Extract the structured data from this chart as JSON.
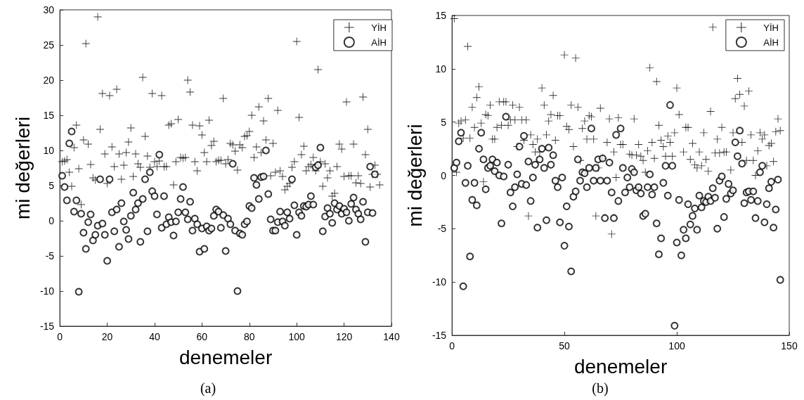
{
  "chart_data": [
    {
      "type": "scatter",
      "xlabel": "denemeler",
      "ylabel": "mi değerleri",
      "annotations": [
        "(a)"
      ],
      "xlim": [
        0,
        140
      ],
      "xticks": [
        0,
        20,
        40,
        60,
        80,
        100,
        120,
        140
      ],
      "ylim": [
        -15,
        30
      ],
      "yticks": [
        -15,
        -10,
        -5,
        0,
        5,
        10,
        15,
        20,
        25,
        30
      ],
      "grid": false,
      "legend": "top right",
      "series": [
        {
          "name": "YİH",
          "color": "#000000",
          "marker": "cross",
          "x": [
            1,
            2,
            3,
            4,
            5,
            6,
            7,
            8,
            9,
            10,
            11,
            12,
            13,
            14,
            15,
            16,
            17,
            18,
            19,
            20,
            21,
            22,
            23,
            24,
            25,
            26,
            27,
            28,
            29,
            30,
            31,
            32,
            33,
            34,
            35,
            36,
            37,
            38,
            39,
            40,
            41,
            42,
            43,
            44,
            45,
            46,
            47,
            48,
            49,
            50,
            51,
            52,
            53,
            54,
            55,
            56,
            57,
            58,
            59,
            60,
            61,
            62,
            63,
            64,
            65,
            66,
            67,
            68,
            69,
            70,
            71,
            72,
            73,
            74,
            75,
            76,
            77,
            78,
            79,
            80,
            81,
            82,
            83,
            84,
            85,
            86,
            87,
            88,
            89,
            90,
            91,
            92,
            93,
            94,
            95,
            96,
            97,
            98,
            99,
            100,
            101,
            102,
            103,
            104,
            105,
            106,
            107,
            108,
            109,
            110,
            111,
            112,
            113,
            114,
            115,
            116,
            117,
            118,
            119,
            120,
            121,
            122,
            123,
            124,
            125,
            126,
            127,
            128,
            129,
            130,
            131,
            132,
            133,
            134,
            135
          ],
          "values": [
            8.4,
            8.5,
            8.7,
            6.9,
            4.9,
            10.4,
            13.6,
            7.4,
            2.3,
            11.5,
            25.2,
            10.9,
            8.0,
            6.1,
            5.8,
            29,
            13,
            18.1,
            9.5,
            5.3,
            17.8,
            10.5,
            7.7,
            18.7,
            9.5,
            5.9,
            7.9,
            9.7,
            11.2,
            13.2,
            6.3,
            9.5,
            8.1,
            7.6,
            20.4,
            12.0,
            9.2,
            7.6,
            18.1,
            8.4,
            7.7,
            8.5,
            17.8,
            7.7,
            7.7,
            13.6,
            13.8,
            5.1,
            8.4,
            14.4,
            9.0,
            8.9,
            9.0,
            20.0,
            18.3,
            13.6,
            8.4,
            7.1,
            13.5,
            12.2,
            9.7,
            8.4,
            14.3,
            10.7,
            11.3,
            8.4,
            8.6,
            8.6,
            17.4,
            8.1,
            8.7,
            11.0,
            10.8,
            9.9,
            7.2,
            10.8,
            10.4,
            12.0,
            12.1,
            12.7,
            15.0,
            9.0,
            10.5,
            16.2,
            9.7,
            14.2,
            11.5,
            17.4,
            6.4,
            11.0,
            6.9,
            15.7,
            7.1,
            6.3,
            4.4,
            4.9,
            5.3,
            7.6,
            8.4,
            25.5,
            14.7,
            9.4,
            10.6,
            7.1,
            7.7,
            8.0,
            9.0,
            7.1,
            21.5,
            8.4,
            4.9,
            8.1,
            6.1,
            7.1,
            3.5,
            3.9,
            7.7,
            10.9,
            10.2,
            6.3,
            16.9,
            6.4,
            6.4,
            10.9,
            5.4,
            6.4,
            5.3,
            17.6,
            9.4,
            13.0,
            4.8,
            6.6,
            7.9,
            6.6,
            5.1
          ]
        },
        {
          "name": "AİH",
          "color": "#000000",
          "marker": "circle",
          "x": [
            1,
            2,
            3,
            4,
            5,
            6,
            7,
            8,
            9,
            10,
            11,
            12,
            13,
            14,
            15,
            16,
            17,
            18,
            19,
            20,
            21,
            22,
            23,
            24,
            25,
            26,
            27,
            28,
            29,
            30,
            31,
            32,
            33,
            34,
            35,
            36,
            37,
            38,
            39,
            40,
            41,
            42,
            43,
            44,
            45,
            46,
            47,
            48,
            49,
            50,
            51,
            52,
            53,
            54,
            55,
            56,
            57,
            58,
            59,
            60,
            61,
            62,
            63,
            64,
            65,
            66,
            67,
            68,
            69,
            70,
            71,
            72,
            73,
            74,
            75,
            76,
            77,
            78,
            79,
            80,
            81,
            82,
            83,
            84,
            85,
            86,
            87,
            88,
            89,
            90,
            91,
            92,
            93,
            94,
            95,
            96,
            97,
            98,
            99,
            100,
            101,
            102,
            103,
            104,
            105,
            106,
            107,
            108,
            109,
            110,
            111,
            112,
            113,
            114,
            115,
            116,
            117,
            118,
            119,
            120,
            121,
            122,
            123,
            124,
            125,
            126,
            127,
            128,
            129,
            130,
            131,
            132,
            133
          ],
          "values": [
            6.4,
            4.8,
            2.9,
            11.0,
            12.7,
            1.3,
            2.9,
            -10.1,
            1.0,
            -1.7,
            -4.0,
            -0.2,
            0.9,
            -2.8,
            -2.0,
            -0.7,
            5.9,
            -0.4,
            -2.0,
            -5.7,
            5.9,
            1.2,
            -1.5,
            1.6,
            -3.7,
            2.5,
            -0.1,
            -1.3,
            -2.6,
            0.7,
            4.0,
            1.6,
            2.5,
            -3.0,
            3.1,
            5.9,
            -1.5,
            6.9,
            4.2,
            3.5,
            0.9,
            9.4,
            -1.0,
            3.5,
            -0.5,
            0.5,
            -0.2,
            -2.1,
            -0.1,
            1.2,
            3.1,
            4.8,
            1.2,
            0.2,
            2.7,
            -1.4,
            0.3,
            -0.5,
            -4.4,
            -1.1,
            -4.0,
            -0.8,
            -1.4,
            -1.1,
            0.7,
            1.6,
            1.3,
            -1.0,
            0.8,
            -4.3,
            0.3,
            -0.5,
            8.1,
            -1.4,
            -10.0,
            -1.8,
            -2.0,
            -0.5,
            -0.1,
            2.1,
            1.8,
            6.1,
            5.1,
            3.1,
            6.2,
            6.3,
            10.0,
            3.8,
            0.2,
            -1.4,
            -1.4,
            -0.2,
            1.3,
            -0.1,
            -0.7,
            1.2,
            0.3,
            5.9,
            2.2,
            -2.0,
            1.2,
            0.7,
            2.1,
            2.0,
            2.3,
            3.5,
            2.3,
            7.6,
            7.9,
            10.4,
            -1.5,
            0.6,
            1.8,
            1.0,
            -0.3,
            2.5,
            1.6,
            2.1,
            1.0,
            1.7,
            1.2,
            0.0,
            2.4,
            3.3,
            1.6,
            1.0,
            0.2,
            2.7,
            -3.0,
            1.2,
            7.7,
            1.1,
            6.6
          ]
        }
      ]
    },
    {
      "type": "scatter",
      "xlabel": "denemeler",
      "ylabel": "mi değerleri",
      "annotations": [
        "(b)"
      ],
      "xlim": [
        0,
        150
      ],
      "xticks": [
        0,
        50,
        100,
        150
      ],
      "ylim": [
        -15,
        15
      ],
      "yticks": [
        -15,
        -10,
        -5,
        0,
        5,
        10,
        15
      ],
      "grid": false,
      "legend": "top right",
      "series": [
        {
          "name": "YİH",
          "color": "#000000",
          "marker": "cross",
          "x": [
            1,
            2,
            3,
            4,
            5,
            6,
            7,
            8,
            9,
            10,
            11,
            12,
            13,
            14,
            15,
            16,
            17,
            18,
            19,
            20,
            21,
            22,
            23,
            24,
            25,
            26,
            27,
            28,
            29,
            30,
            31,
            32,
            33,
            34,
            35,
            36,
            37,
            38,
            39,
            40,
            41,
            42,
            43,
            44,
            45,
            46,
            47,
            48,
            50,
            51,
            52,
            53,
            54,
            55,
            56,
            57,
            58,
            59,
            60,
            61,
            62,
            63,
            64,
            65,
            66,
            67,
            69,
            70,
            71,
            72,
            73,
            74,
            75,
            76,
            79,
            80,
            81,
            82,
            83,
            84,
            85,
            86,
            87,
            88,
            89,
            90,
            91,
            92,
            93,
            94,
            95,
            96,
            97,
            98,
            99,
            100,
            101,
            103,
            104,
            105,
            106,
            107,
            108,
            109,
            110,
            111,
            112,
            113,
            114,
            115,
            116,
            117,
            118,
            119,
            120,
            121,
            122,
            124,
            125,
            126,
            127,
            128,
            129,
            130,
            131,
            132,
            133,
            134,
            135,
            136,
            137,
            138,
            139,
            140,
            141,
            142,
            143,
            144,
            145,
            146
          ],
          "values": [
            14.7,
            0.3,
            4.9,
            5.1,
            3.5,
            5.2,
            12.1,
            3.5,
            6.4,
            4.5,
            7.3,
            8.3,
            4.9,
            -0.6,
            5.7,
            5.6,
            6.6,
            3.4,
            3.4,
            4.5,
            6.9,
            4.7,
            6.9,
            6.9,
            4.7,
            5.2,
            6.6,
            5.2,
            2.7,
            6.4,
            5.2,
            3.3,
            5.2,
            -3.8,
            3.8,
            2.9,
            2.2,
            3.4,
            2.2,
            8.2,
            6.6,
            3.8,
            5.1,
            5.7,
            7.5,
            3.3,
            5.6,
            5.6,
            11.3,
            4.6,
            4.3,
            6.6,
            2.7,
            11.0,
            6.4,
            1.4,
            4.4,
            5.1,
            3.4,
            5.6,
            5.5,
            3.4,
            -3.8,
            0.7,
            6.3,
            1.6,
            3.1,
            5.3,
            -5.5,
            2.2,
            -0.2,
            5.4,
            2.9,
            2.9,
            2.0,
            1.9,
            5.3,
            1.9,
            2.9,
            1.8,
            1.4,
            0.3,
            2.3,
            10.1,
            3.1,
            1.6,
            8.8,
            4.7,
            3.3,
            2.7,
            1.8,
            3.7,
            3.1,
            1.8,
            4.0,
            8.2,
            5.7,
            2.2,
            4.5,
            4.5,
            1.5,
            3.0,
            1.0,
            0.7,
            2.2,
            0.9,
            4.0,
            1.5,
            0.4,
            6.0,
            13.9,
            2.1,
            3.4,
            2.1,
            4.5,
            2.2,
            2.2,
            0.5,
            4.0,
            7.2,
            9.1,
            7.6,
            3.1,
            6.5,
            1.4,
            7.9,
            3.8,
            1.4,
            0.0,
            2.3,
            4.0,
            3.4,
            3.8,
            0.9,
            2.8,
            3.0,
            1.3,
            4.1,
            5.3,
            4.2
          ]
        },
        {
          "name": "AİH",
          "color": "#000000",
          "marker": "circle",
          "x": [
            1,
            2,
            3,
            4,
            5,
            6,
            7,
            8,
            9,
            10,
            11,
            12,
            13,
            14,
            15,
            16,
            17,
            18,
            19,
            20,
            21,
            22,
            23,
            24,
            25,
            26,
            27,
            28,
            29,
            30,
            31,
            32,
            33,
            34,
            35,
            36,
            37,
            38,
            39,
            40,
            41,
            42,
            43,
            44,
            45,
            46,
            47,
            48,
            49,
            50,
            51,
            52,
            53,
            54,
            55,
            56,
            57,
            58,
            59,
            60,
            61,
            62,
            63,
            64,
            65,
            66,
            67,
            68,
            69,
            70,
            71,
            72,
            73,
            74,
            75,
            76,
            77,
            78,
            79,
            80,
            81,
            82,
            83,
            84,
            85,
            86,
            87,
            88,
            89,
            90,
            91,
            92,
            93,
            94,
            95,
            96,
            97,
            98,
            99,
            100,
            101,
            102,
            103,
            104,
            105,
            106,
            107,
            108,
            109,
            110,
            111,
            112,
            113,
            114,
            115,
            116,
            117,
            118,
            119,
            120,
            121,
            122,
            123,
            124,
            125,
            126,
            127,
            128,
            129,
            130,
            131,
            132,
            133,
            134,
            135,
            136,
            137,
            138,
            139,
            140,
            141,
            142,
            143,
            144,
            145,
            146
          ],
          "values": [
            0.7,
            1.2,
            3.2,
            4.0,
            -10.4,
            -0.7,
            0.9,
            -7.6,
            -2.3,
            -0.7,
            -2.8,
            2.5,
            4.0,
            1.5,
            -1.3,
            0.7,
            0.9,
            1.5,
            0.4,
            1.2,
            0.0,
            -4.5,
            -0.1,
            5.5,
            1.0,
            -1.6,
            -2.9,
            -1.1,
            0.1,
            2.7,
            -0.8,
            3.7,
            -0.9,
            1.3,
            -2.4,
            -0.2,
            1.0,
            -4.9,
            1.5,
            2.5,
            0.7,
            -4.2,
            2.6,
            1.0,
            1.9,
            -0.5,
            -1.1,
            -4.4,
            -0.2,
            -6.6,
            -2.9,
            -4.8,
            -9.0,
            -2.0,
            -1.5,
            1.5,
            -0.5,
            0.3,
            0.2,
            -1.1,
            0.7,
            4.4,
            -0.5,
            0.7,
            1.5,
            -0.5,
            1.6,
            -4.0,
            -0.5,
            1.2,
            -1.6,
            -4.0,
            3.8,
            -2.4,
            4.4,
            0.7,
            -1.6,
            -0.2,
            -1.1,
            0.6,
            0.3,
            -1.4,
            -1.1,
            -1.7,
            -3.8,
            -3.6,
            -1.1,
            0.1,
            -1.8,
            -1.1,
            -4.5,
            -7.4,
            -5.9,
            -0.7,
            0.9,
            -1.9,
            6.6,
            0.9,
            -14.1,
            -6.3,
            -2.3,
            -7.5,
            -5.1,
            -5.9,
            -2.7,
            -4.6,
            -3.8,
            -3.1,
            -5.1,
            -1.9,
            -3.0,
            -2.4,
            -2.5,
            -2.0,
            -2.4,
            -1.2,
            -2.1,
            -5.0,
            -0.5,
            -0.1,
            -3.9,
            -2.2,
            -0.8,
            -1.7,
            -1.4,
            3.1,
            1.8,
            4.2,
            1.1,
            -2.6,
            -1.6,
            -1.5,
            -2.3,
            -1.5,
            -4.0,
            -2.4,
            0.3,
            0.9,
            -4.4,
            -2.7,
            -1.2,
            -0.6,
            -4.9,
            -3.2,
            -0.4,
            -9.8
          ]
        }
      ]
    }
  ]
}
